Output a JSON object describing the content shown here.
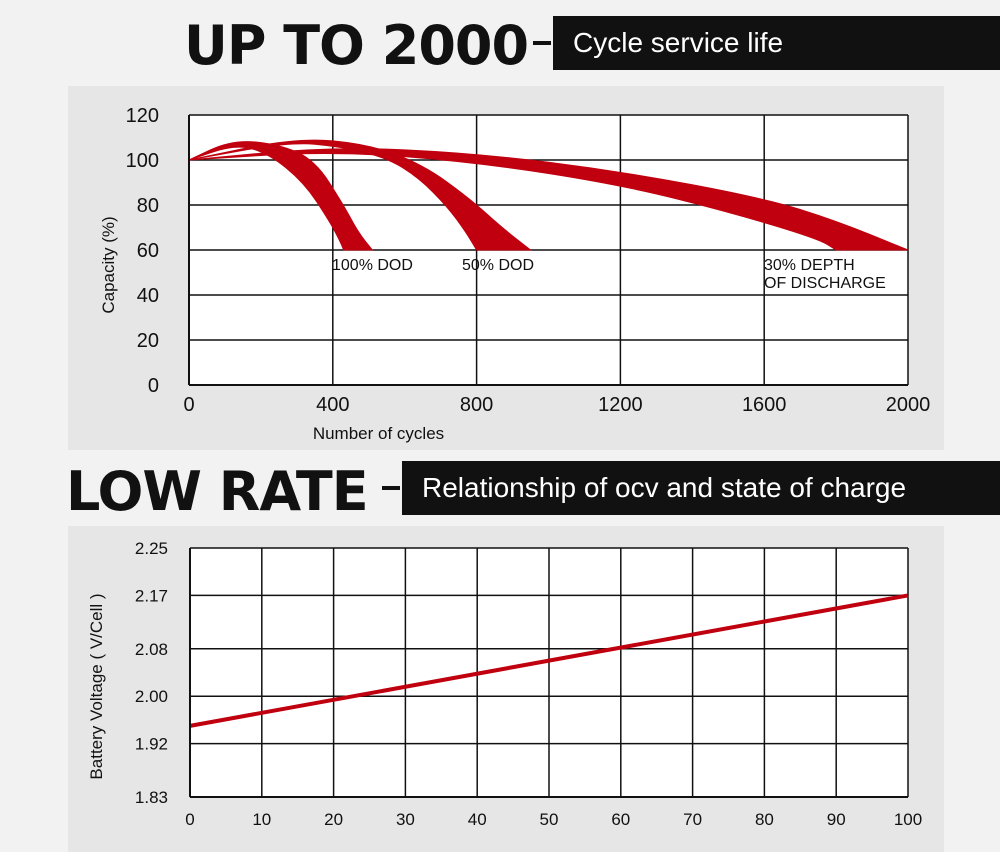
{
  "section1": {
    "headline": "UP TO 2000",
    "banner": "Cycle service life"
  },
  "section2": {
    "headline": "LOW RATE",
    "banner": "Relationship of ocv and state of charge"
  },
  "colors": {
    "curve": "#c0000f",
    "grid": "#111111",
    "plot_bg": "#ffffff",
    "panel_bg": "#e6e6e6"
  },
  "chart_data": [
    {
      "type": "area",
      "title": "",
      "xlabel": "Number of cycles",
      "ylabel": "Capacity (%)",
      "xlim": [
        0,
        2000
      ],
      "ylim": [
        0,
        120
      ],
      "xticks": [
        0,
        400,
        800,
        1200,
        1600,
        2000
      ],
      "yticks": [
        0,
        20,
        40,
        60,
        80,
        100,
        120
      ],
      "grid": true,
      "series": [
        {
          "label": "100% DOD",
          "upper": [
            [
              0,
              100
            ],
            [
              120,
              109
            ],
            [
              250,
              107
            ],
            [
              350,
              100
            ],
            [
              430,
              80
            ],
            [
              470,
              68
            ],
            [
              510,
              60
            ]
          ],
          "lower": [
            [
              0,
              100
            ],
            [
              130,
              107
            ],
            [
              220,
              103
            ],
            [
              320,
              90
            ],
            [
              390,
              73
            ],
            [
              420,
              64
            ],
            [
              430,
              60
            ]
          ]
        },
        {
          "label": "50% DOD",
          "upper": [
            [
              0,
              100
            ],
            [
              300,
              110
            ],
            [
              500,
              107
            ],
            [
              650,
              98
            ],
            [
              780,
              83
            ],
            [
              870,
              70
            ],
            [
              950,
              60
            ]
          ],
          "lower": [
            [
              0,
              100
            ],
            [
              280,
              108
            ],
            [
              420,
              106
            ],
            [
              550,
              101
            ],
            [
              640,
              92
            ],
            [
              720,
              79
            ],
            [
              770,
              68
            ],
            [
              800,
              60
            ]
          ]
        },
        {
          "label": "30% DEPTH OF DISCHARGE",
          "upper": [
            [
              0,
              100
            ],
            [
              400,
              106
            ],
            [
              800,
              103
            ],
            [
              1200,
              95
            ],
            [
              1600,
              83
            ],
            [
              1800,
              73
            ],
            [
              2000,
              60
            ]
          ],
          "lower": [
            [
              0,
              100
            ],
            [
              400,
              104
            ],
            [
              800,
              99
            ],
            [
              1200,
              89
            ],
            [
              1500,
              77
            ],
            [
              1750,
              65
            ],
            [
              1800,
              60
            ]
          ]
        }
      ]
    },
    {
      "type": "line",
      "title": "",
      "xlabel": "",
      "ylabel": "Battery Voltage ( V/Cell )",
      "xlim": [
        0,
        100
      ],
      "ylim": [
        1.83,
        2.25
      ],
      "xticks": [
        0,
        10,
        20,
        30,
        40,
        50,
        60,
        70,
        80,
        90,
        100
      ],
      "yticks": [
        "1.83",
        "1.92",
        "2.00",
        "2.08",
        "2.17",
        "2.25"
      ],
      "grid": true,
      "series": [
        {
          "x": [
            0,
            100
          ],
          "y": [
            1.95,
            2.17
          ]
        }
      ]
    }
  ]
}
